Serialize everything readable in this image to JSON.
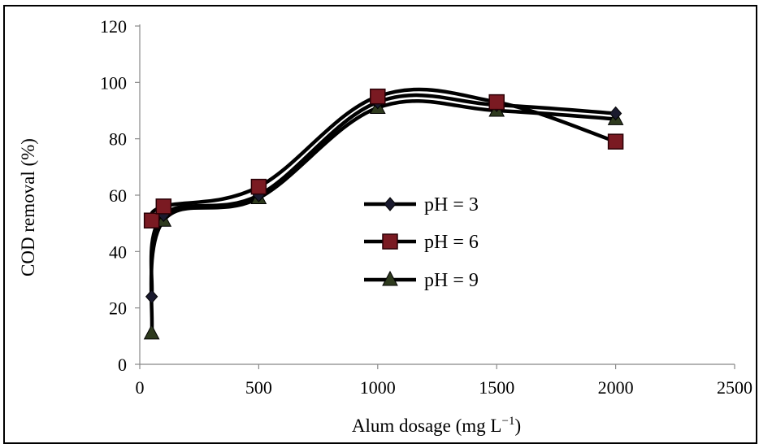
{
  "chart_data": {
    "type": "line",
    "title": "",
    "xlabel": "Alum dosage (mg L",
    "xlabel_sup": "−1",
    "xlabel_close": ")",
    "ylabel": "COD removal (%)",
    "xlim": [
      0,
      2500
    ],
    "ylim": [
      0,
      120
    ],
    "x_ticks": [
      0,
      500,
      1000,
      1500,
      2000,
      2500
    ],
    "y_ticks": [
      0,
      20,
      40,
      60,
      80,
      100,
      120
    ],
    "x_tick_labels": [
      "0",
      "500",
      "1000",
      "1500",
      "2000",
      "2500"
    ],
    "y_tick_labels": [
      "0",
      "20",
      "40",
      "60",
      "80",
      "100",
      "120"
    ],
    "grid": false,
    "legend_position": "center-right",
    "series": [
      {
        "name": "pH = 3",
        "marker": "diamond",
        "color": "#000000",
        "x": [
          50,
          100,
          500,
          1000,
          1500,
          2000
        ],
        "y": [
          24,
          53,
          60,
          93,
          92,
          89
        ]
      },
      {
        "name": "pH = 6",
        "marker": "square",
        "color": "#000000",
        "marker_fill": "#7a1a22",
        "x": [
          50,
          100,
          500,
          1000,
          1500,
          2000
        ],
        "y": [
          51,
          56,
          63,
          95,
          93,
          79
        ]
      },
      {
        "name": "pH = 9",
        "marker": "triangle",
        "color": "#000000",
        "marker_fill": "#2e3a1e",
        "x": [
          50,
          100,
          500,
          1000,
          1500,
          2000
        ],
        "y": [
          11,
          51,
          59,
          91,
          90,
          87
        ]
      }
    ]
  }
}
